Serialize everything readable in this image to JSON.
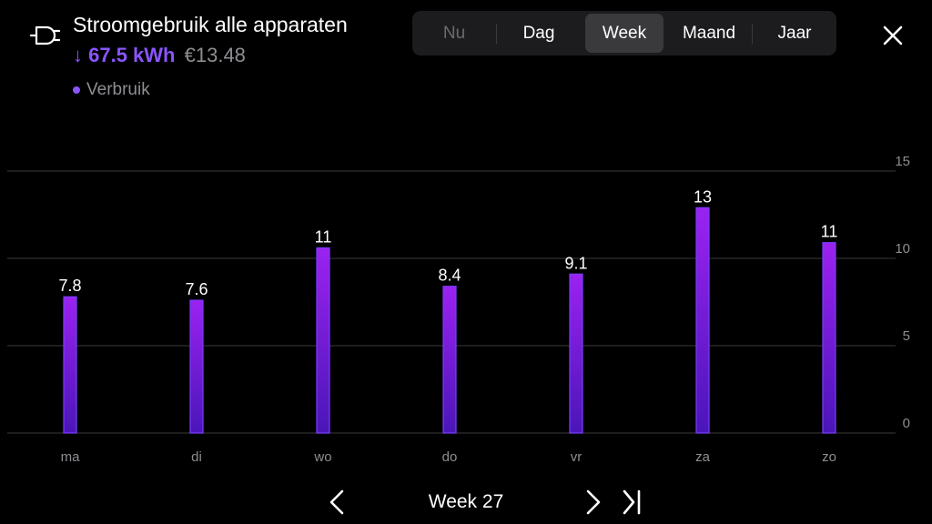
{
  "header": {
    "title": "Stroomgebruik alle apparaten",
    "arrow": "↓",
    "energy": "67.5 kWh",
    "cost": "€13.48",
    "legend": "Verbruik",
    "icon": "plug-icon"
  },
  "tabs": [
    {
      "label": "Nu",
      "state": "disabled"
    },
    {
      "label": "Dag",
      "state": "normal"
    },
    {
      "label": "Week",
      "state": "active"
    },
    {
      "label": "Maand",
      "state": "normal"
    },
    {
      "label": "Jaar",
      "state": "normal"
    }
  ],
  "colors": {
    "accent": "#8a55ff",
    "bar_top": "#9b22f0",
    "bar_bottom": "#4a16b8",
    "bar_stroke": "#7a3cff",
    "grid": "#3a3a3c",
    "tick_text": "#8e8e93"
  },
  "footer": {
    "week_label": "Week 27",
    "prev_icon": "chevron-left-icon",
    "next_icon": "chevron-right-icon",
    "last_icon": "skip-to-end-icon"
  },
  "chart_data": {
    "type": "bar",
    "categories": [
      "ma",
      "di",
      "wo",
      "do",
      "vr",
      "za",
      "zo"
    ],
    "values": [
      7.8,
      7.6,
      10.6,
      8.4,
      9.1,
      12.9,
      10.9
    ],
    "data_labels": [
      "7.8",
      "7.6",
      "11",
      "8.4",
      "9.1",
      "13",
      "11"
    ],
    "yticks": [
      0,
      5,
      10,
      15
    ],
    "ylim": [
      0,
      15
    ],
    "grid": true,
    "yaxis_position": "right",
    "series": [
      {
        "name": "Verbruik"
      }
    ]
  }
}
